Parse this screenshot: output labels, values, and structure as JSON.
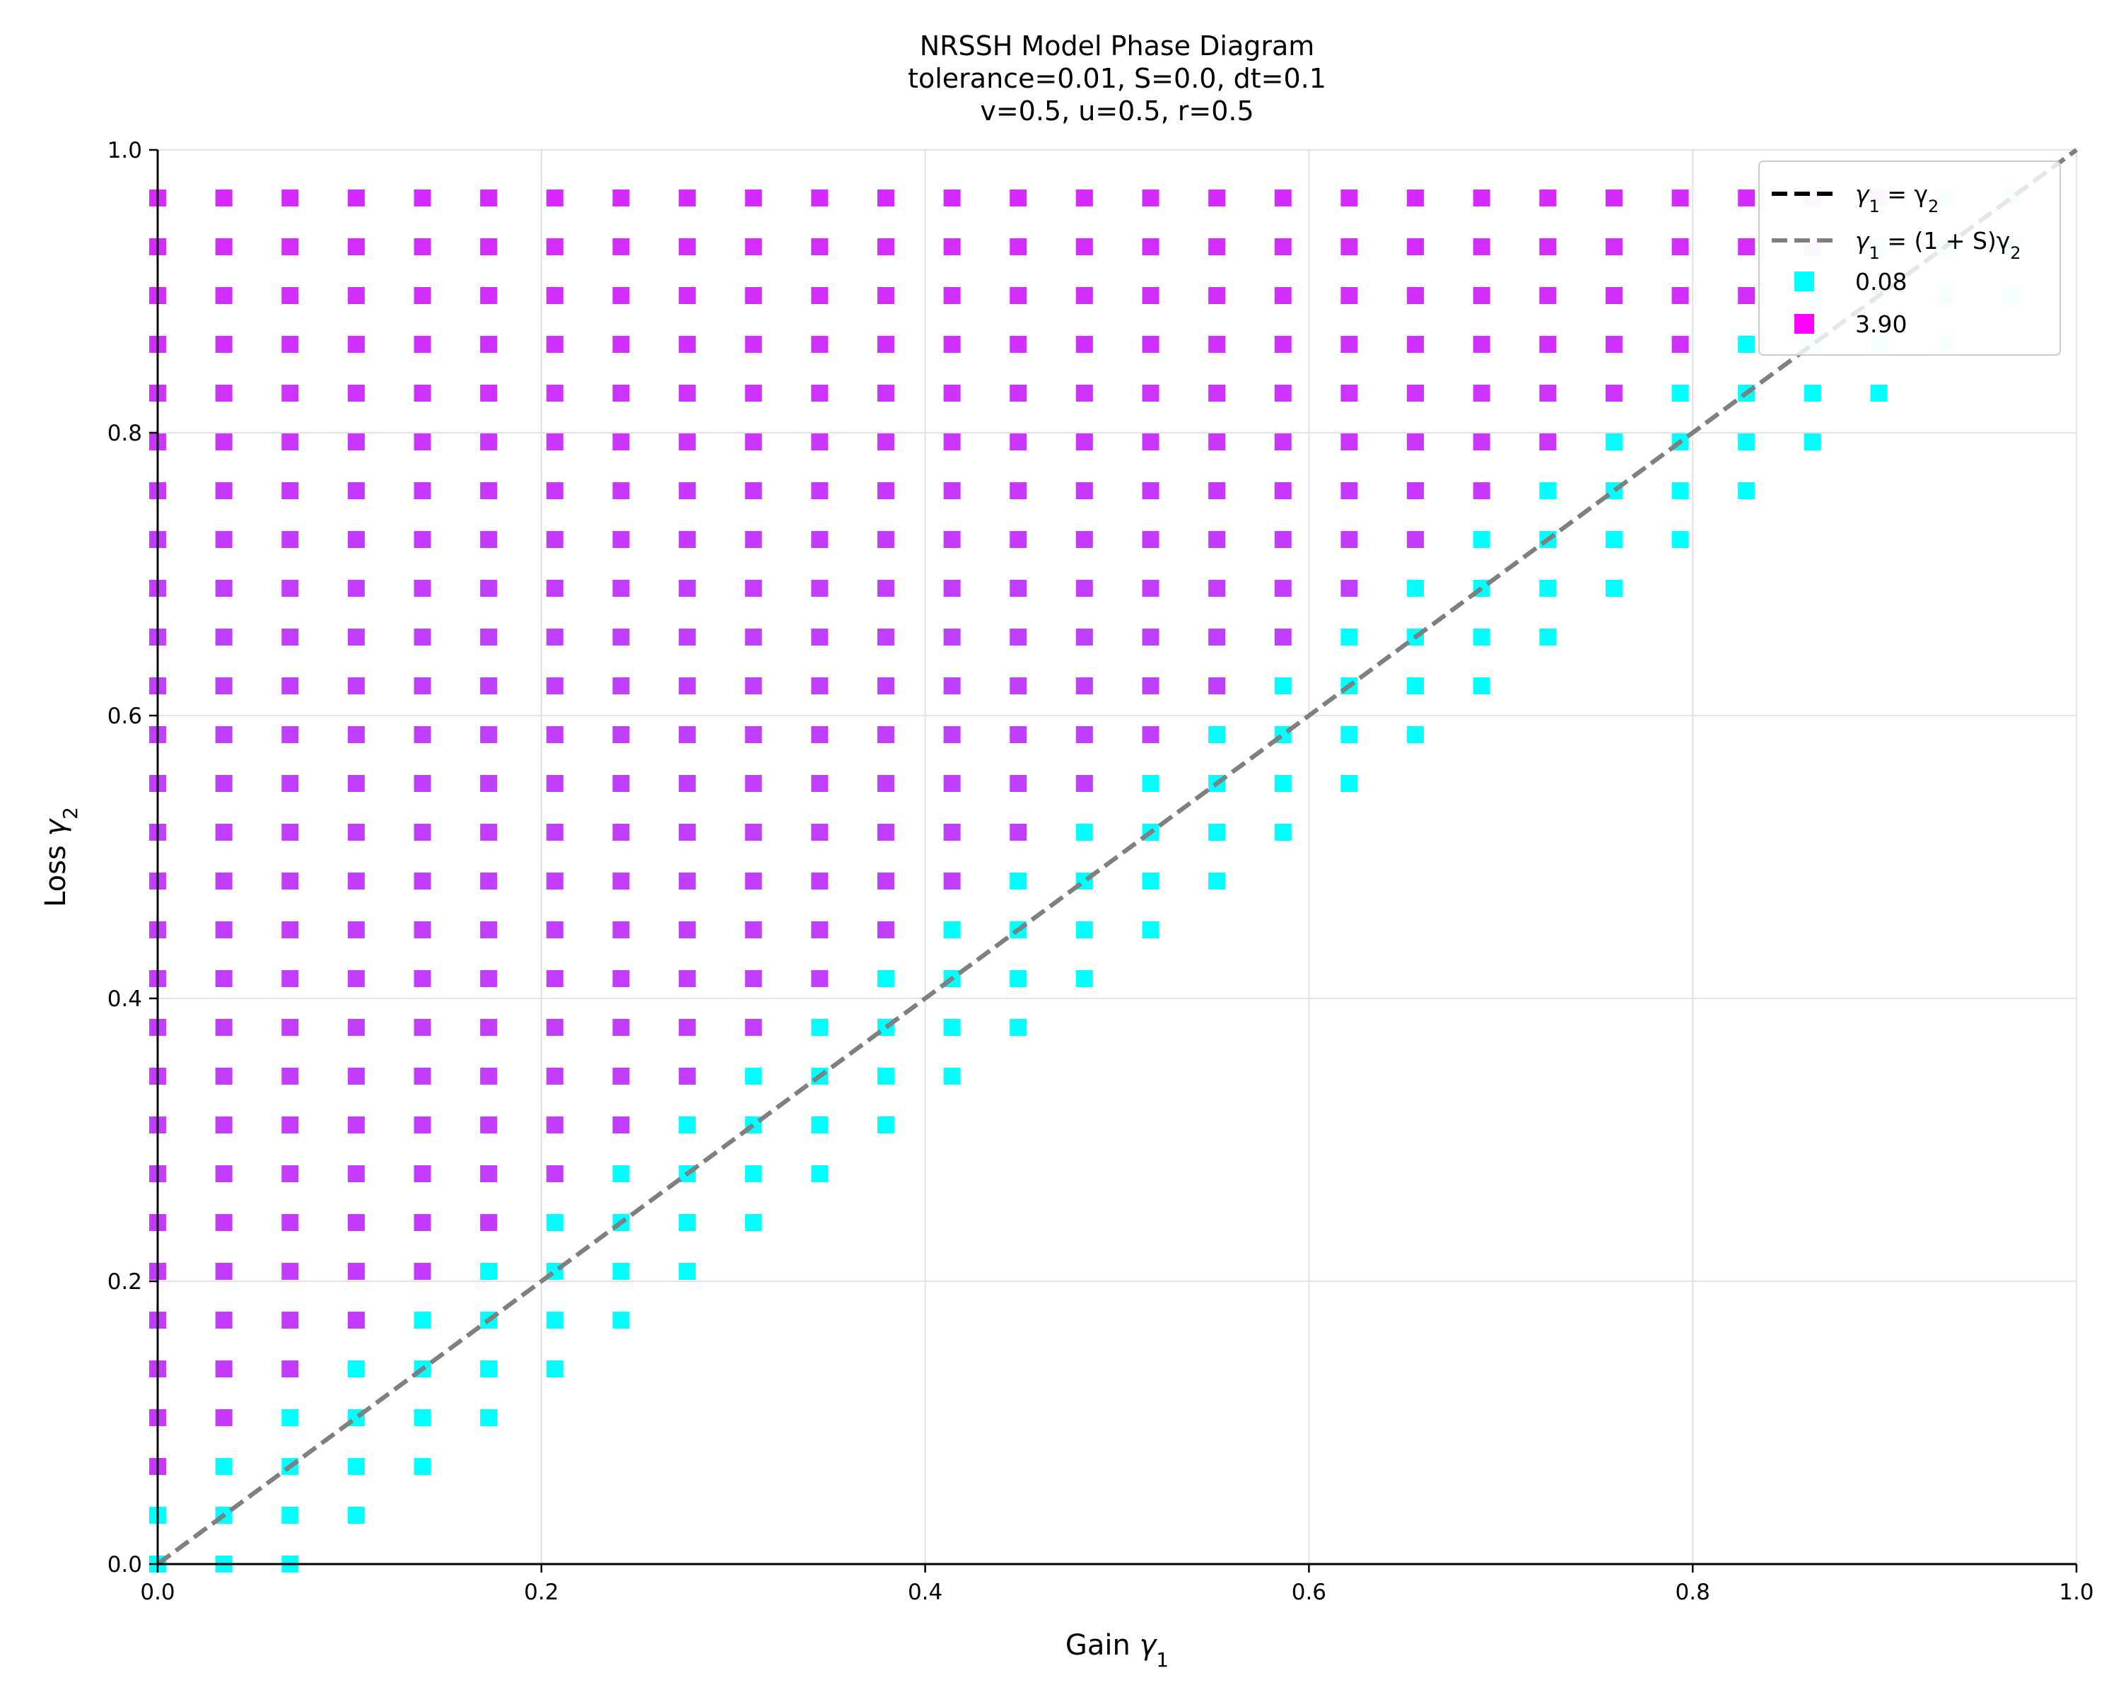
{
  "chart_data": {
    "type": "scatter",
    "title_lines": [
      "NRSSH Model Phase Diagram",
      "tolerance=0.01, S=0.0, dt=0.1",
      "v=0.5, u=0.5, r=0.5"
    ],
    "xlabel": {
      "text": "Gain ",
      "symbol": "γ",
      "sub": "1"
    },
    "ylabel": {
      "text": "Loss ",
      "symbol": "γ",
      "sub": "2"
    },
    "xlim": [
      0,
      1
    ],
    "ylim": [
      0,
      1
    ],
    "xticks": [
      "0.0",
      "0.2",
      "0.4",
      "0.6",
      "0.8",
      "1.0"
    ],
    "yticks": [
      "0.0",
      "0.2",
      "0.4",
      "0.6",
      "0.8",
      "1.0"
    ],
    "grid": true,
    "grid_step_points": 0.0345,
    "colormap": "cool",
    "color_low": "#00ffff",
    "color_high": "#ff00ff",
    "value_range": [
      0.08,
      3.9
    ],
    "marker": "square",
    "legend_position": "upper right",
    "legend": [
      {
        "label_main": "γ",
        "label_sub": "1",
        "label_rest": " = γ",
        "label_sub2": "2",
        "style": "dashed",
        "color": "#000000"
      },
      {
        "label_main": "γ",
        "label_sub": "1",
        "label_rest": " = (1 + S)γ",
        "label_sub2": "2",
        "style": "dashed",
        "color": "#808080"
      },
      {
        "label": "0.08",
        "style": "marker",
        "color": "#00ffff"
      },
      {
        "label": "3.90",
        "style": "marker",
        "color": "#ff00ff"
      }
    ],
    "lines": [
      {
        "name": "γ1 = γ2",
        "x": [
          0,
          1
        ],
        "y": [
          0,
          1
        ],
        "color": "#000000"
      },
      {
        "name": "γ1 = (1+S)γ2",
        "x": [
          0,
          1
        ],
        "y": [
          0,
          1
        ],
        "color": "#808080"
      }
    ],
    "regions": {
      "above_diagonal": "values rise from ~0.5 near gamma1=0 (blue) toward 3.90 (magenta) approaching a band just above the diagonal, then drop to cyan (0.08) adjacent to the diagonal",
      "below_diagonal_band": "cyan markers (0.08) in a narrow band up to ~0.07 below the diagonal",
      "far_below_diagonal": "no markers"
    }
  }
}
